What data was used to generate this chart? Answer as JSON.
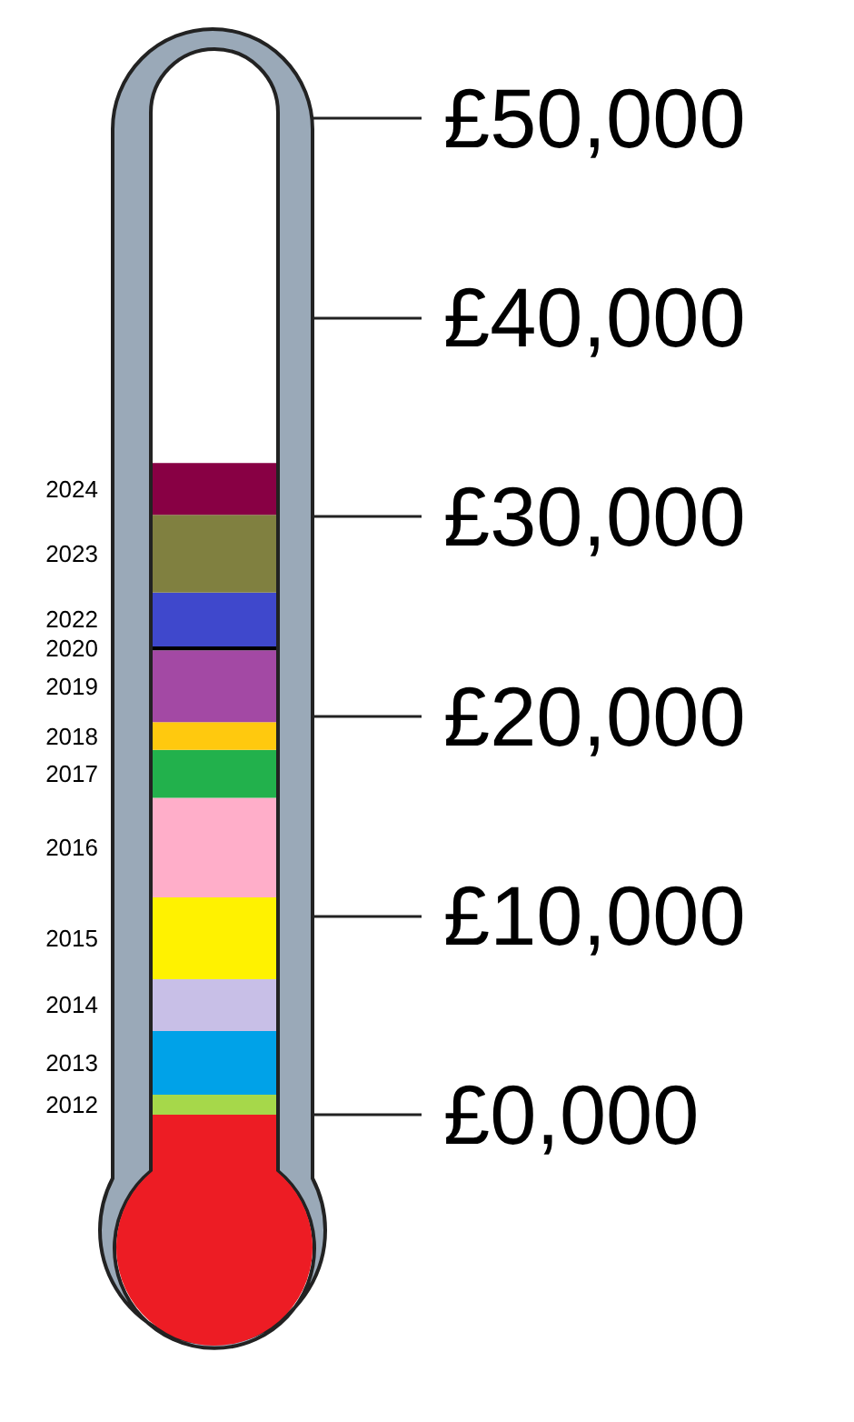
{
  "chart_data": {
    "type": "bar",
    "stacked": true,
    "categories": [
      null
    ],
    "tick_labels": "y",
    "ylim": [
      0,
      50000
    ],
    "yticks": [
      {
        "value": 0,
        "label": "£0,000"
      },
      {
        "value": 10000,
        "label": "£10,000"
      },
      {
        "value": 20000,
        "label": "£20,000"
      },
      {
        "value": 30000,
        "label": "£30,000"
      },
      {
        "value": 40000,
        "label": "£40,000"
      },
      {
        "value": 50000,
        "label": "£50,000"
      }
    ],
    "series": [
      {
        "name": "2012",
        "color": "#a6d84a",
        "values": [
          1000
        ]
      },
      {
        "name": "2013",
        "color": "#00a2e8",
        "values": [
          3200
        ]
      },
      {
        "name": "2014",
        "color": "#c8bfe7",
        "values": [
          2600
        ]
      },
      {
        "name": "2015",
        "color": "#fff200",
        "values": [
          4100
        ]
      },
      {
        "name": "2016",
        "color": "#ffaec9",
        "values": [
          5000
        ]
      },
      {
        "name": "2017",
        "color": "#22b14c",
        "values": [
          2400
        ]
      },
      {
        "name": "2018",
        "color": "#ffc90e",
        "values": [
          1400
        ]
      },
      {
        "name": "2019",
        "color": "#a349a4",
        "values": [
          3600
        ]
      },
      {
        "name": "2020",
        "color": "#000000",
        "values": [
          200
        ]
      },
      {
        "name": "2022",
        "color": "#3f48cc",
        "values": [
          2700
        ]
      },
      {
        "name": "2023",
        "color": "#808040",
        "values": [
          3900
        ]
      },
      {
        "name": "2024",
        "color": "#880044",
        "values": [
          2600
        ]
      }
    ]
  }
}
